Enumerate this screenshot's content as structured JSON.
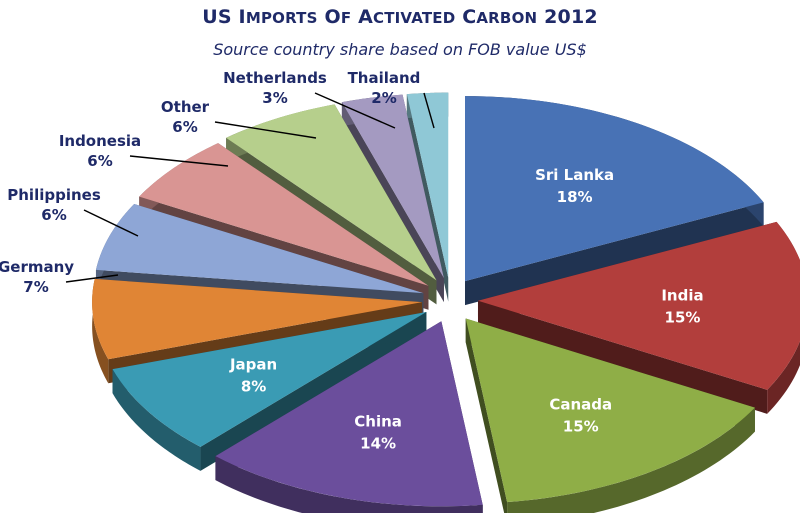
{
  "chart_data": {
    "type": "pie",
    "title": "US Imports of Activated Carbon 2012",
    "subtitle": "Source country share based on FOB value US$",
    "categories": [
      "Sri Lanka",
      "India",
      "Canada",
      "China",
      "Japan",
      "Germany",
      "Philippines",
      "Indonesia",
      "Other",
      "Netherlands",
      "Thailand"
    ],
    "values": [
      18,
      15,
      15,
      14,
      8,
      7,
      6,
      6,
      6,
      3,
      2
    ],
    "labels": [
      "18%",
      "15%",
      "15%",
      "14%",
      "8%",
      "7%",
      "6%",
      "6%",
      "6%",
      "3%",
      "2%"
    ],
    "colors": [
      "#4872b5",
      "#b23e3c",
      "#8fae47",
      "#6b4e9c",
      "#3a9bb4",
      "#e08535",
      "#8ea6d6",
      "#d99593",
      "#b6cf8c",
      "#a49ac1",
      "#8fc8d6"
    ],
    "label_style": [
      "inside",
      "inside",
      "inside",
      "inside",
      "inside",
      "outside",
      "outside",
      "outside",
      "outside",
      "outside",
      "outside"
    ],
    "legend": "none"
  }
}
